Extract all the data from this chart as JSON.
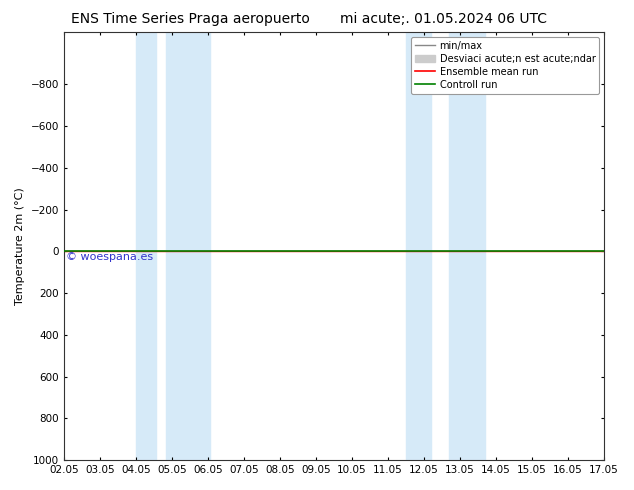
{
  "title_left": "ENS Time Series Praga aeropuerto",
  "title_right": "mi acute;. 01.05.2024 06 UTC",
  "ylabel": "Temperature 2m (°C)",
  "watermark": "© woespana.es",
  "xlim_start": 0,
  "xlim_end": 15,
  "ylim_bottom": 1000,
  "ylim_top": -1050,
  "yticks": [
    -800,
    -600,
    -400,
    -200,
    0,
    200,
    400,
    600,
    800,
    1000
  ],
  "xtick_labels": [
    "02.05",
    "03.05",
    "04.05",
    "05.05",
    "06.05",
    "07.05",
    "08.05",
    "09.05",
    "10.05",
    "11.05",
    "12.05",
    "13.05",
    "14.05",
    "15.05",
    "16.05",
    "17.05"
  ],
  "xtick_positions": [
    0,
    1,
    2,
    3,
    4,
    5,
    6,
    7,
    8,
    9,
    10,
    11,
    12,
    13,
    14,
    15
  ],
  "blue_bands": [
    [
      2.0,
      2.7
    ],
    [
      3.0,
      4.0
    ],
    [
      9.5,
      10.2
    ],
    [
      10.7,
      11.7
    ]
  ],
  "blue_band_color": "#d6eaf8",
  "green_line_y": 0,
  "red_line_y": 0,
  "green_line_color": "#008000",
  "red_line_color": "#ff0000",
  "background_color": "#ffffff",
  "legend_entries": [
    {
      "label": "min/max",
      "color": "#888888",
      "lw": 1.0
    },
    {
      "label": "Desviaci acute;n est acute;ndar",
      "color": "#cccccc",
      "lw": 6
    },
    {
      "label": "Ensemble mean run",
      "color": "#ff0000",
      "lw": 1.2
    },
    {
      "label": "Controll run",
      "color": "#008000",
      "lw": 1.2
    }
  ],
  "title_fontsize": 10,
  "axis_fontsize": 8,
  "tick_fontsize": 7.5,
  "watermark_color": "#3333cc",
  "watermark_fontsize": 8
}
